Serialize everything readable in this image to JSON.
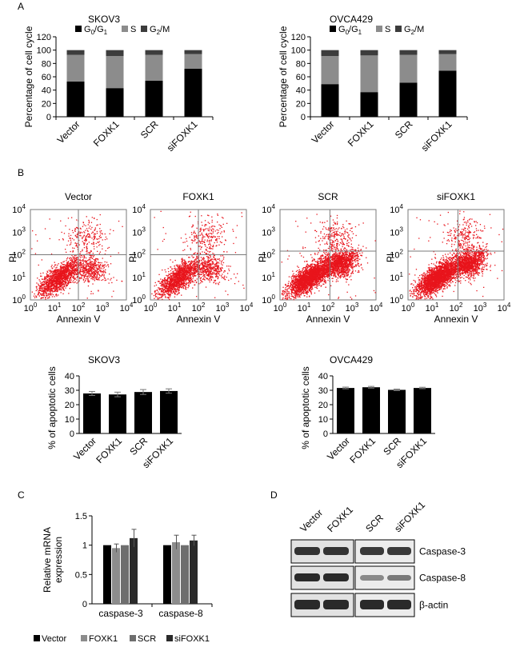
{
  "panels": {
    "A": "A",
    "B": "B",
    "C": "C",
    "D": "D"
  },
  "groups": [
    "Vector",
    "FOXK1",
    "SCR",
    "siFOXK1"
  ],
  "colors": {
    "g0g1": "#000000",
    "s": "#8c8c8c",
    "g2m": "#3c3c3c",
    "dot": "#e8141c",
    "c_vector": "#000000",
    "c_foxk1": "#8c8c8c",
    "c_scr": "#6e6e6e",
    "c_sifoxk1": "#2a2a2a"
  },
  "cellcycle": {
    "ylabel": "Percentage of cell cycle",
    "legend": {
      "g0": "G",
      "g0sub": "0",
      "slash": "/G",
      "g1sub": "1",
      "s": "S",
      "g2": "G",
      "g2sub": "2",
      "m": "/M"
    },
    "yticks": [
      "0",
      "20",
      "40",
      "60",
      "80",
      "100",
      "120"
    ]
  },
  "flow": {
    "xlabel": "Annexin V",
    "ylabel": "PI",
    "ticks": [
      {
        "base": "10",
        "exp": "0"
      },
      {
        "base": "10",
        "exp": "1"
      },
      {
        "base": "10",
        "exp": "2"
      },
      {
        "base": "10",
        "exp": "3"
      },
      {
        "base": "10",
        "exp": "4"
      }
    ]
  },
  "apoptosis": {
    "ylabel": "% of apoptotic cells",
    "yticks": [
      "0",
      "10",
      "20",
      "30",
      "40"
    ]
  },
  "mrna": {
    "ylabel1": "Relative mRNA",
    "ylabel2": "expression",
    "yticks": [
      "0",
      "0.5",
      "1",
      "1.5"
    ]
  },
  "western": {
    "lanes": [
      "Vector",
      "FOXK1",
      "SCR",
      "siFOXK1"
    ],
    "labels": [
      "Caspase-3",
      "Caspase-8",
      "β-actin"
    ]
  },
  "chart_data": [
    {
      "type": "bar",
      "stacked": true,
      "title": "SKOV3",
      "categories": [
        "Vector",
        "FOXK1",
        "SCR",
        "siFOXK1"
      ],
      "series": [
        {
          "name": "G0/G1",
          "values": [
            53,
            43,
            54,
            72
          ]
        },
        {
          "name": "S",
          "values": [
            40,
            48,
            39,
            22
          ]
        },
        {
          "name": "G2/M",
          "values": [
            7,
            9,
            7,
            6
          ]
        }
      ],
      "ylabel": "Percentage of cell cycle",
      "ylim": [
        0,
        120
      ]
    },
    {
      "type": "bar",
      "stacked": true,
      "title": "OVCA429",
      "categories": [
        "Vector",
        "FOXK1",
        "SCR",
        "siFOXK1"
      ],
      "series": [
        {
          "name": "G0/G1",
          "values": [
            49,
            37,
            51,
            69
          ]
        },
        {
          "name": "S",
          "values": [
            42,
            55,
            42,
            25
          ]
        },
        {
          "name": "G2/M",
          "values": [
            9,
            8,
            7,
            6
          ]
        }
      ],
      "ylabel": "Percentage of cell cycle",
      "ylim": [
        0,
        120
      ]
    },
    {
      "type": "bar",
      "title": "SKOV3",
      "categories": [
        "Vector",
        "FOXK1",
        "SCR",
        "siFOXK1"
      ],
      "values": [
        27.8,
        27.1,
        28.8,
        29.5
      ],
      "errors": [
        1.4,
        1.6,
        1.7,
        1.5
      ],
      "ylabel": "% of apoptotic cells",
      "ylim": [
        0,
        40
      ]
    },
    {
      "type": "bar",
      "title": "OVCA429",
      "categories": [
        "Vector",
        "FOXK1",
        "SCR",
        "siFOXK1"
      ],
      "values": [
        31.6,
        32.1,
        30.3,
        31.6
      ],
      "errors": [
        0.6,
        0.6,
        0.5,
        0.5
      ],
      "ylabel": "% of apoptotic cells",
      "ylim": [
        0,
        40
      ]
    },
    {
      "type": "bar",
      "categories": [
        "caspase-3",
        "caspase-8"
      ],
      "series": [
        {
          "name": "Vector",
          "values": [
            1.0,
            1.0
          ],
          "errors": [
            0,
            0
          ]
        },
        {
          "name": "FOXK1",
          "values": [
            0.95,
            1.05
          ],
          "errors": [
            0.07,
            0.12
          ]
        },
        {
          "name": "SCR",
          "values": [
            1.0,
            1.0
          ],
          "errors": [
            0,
            0
          ]
        },
        {
          "name": "siFOXK1",
          "values": [
            1.12,
            1.08
          ],
          "errors": [
            0.15,
            0.09
          ]
        }
      ],
      "ylabel": "Relative mRNA expression",
      "ylim": [
        0,
        1.5
      ],
      "legend": "bottom"
    },
    {
      "type": "scatter",
      "title": "Vector",
      "xlabel": "Annexin V",
      "ylabel": "PI",
      "xscale": "log",
      "yscale": "log",
      "xlim": [
        1,
        10000
      ],
      "ylim": [
        1,
        10000
      ]
    },
    {
      "type": "scatter",
      "title": "FOXK1",
      "xlabel": "Annexin V",
      "ylabel": "PI",
      "xscale": "log",
      "yscale": "log",
      "xlim": [
        1,
        10000
      ],
      "ylim": [
        1,
        10000
      ]
    },
    {
      "type": "scatter",
      "title": "SCR",
      "xlabel": "Annexin V",
      "ylabel": "PI",
      "xscale": "log",
      "yscale": "log",
      "xlim": [
        1,
        10000
      ],
      "ylim": [
        1,
        10000
      ]
    },
    {
      "type": "scatter",
      "title": "siFOXK1",
      "xlabel": "Annexin V",
      "ylabel": "PI",
      "xscale": "log",
      "yscale": "log",
      "xlim": [
        1,
        10000
      ],
      "ylim": [
        1,
        10000
      ]
    }
  ]
}
